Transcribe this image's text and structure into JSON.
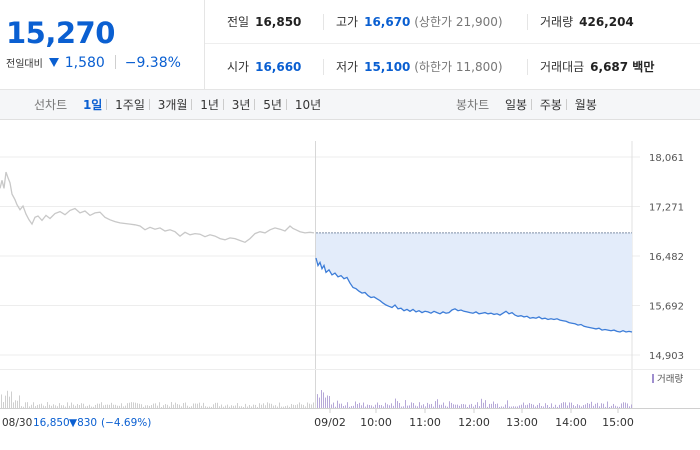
{
  "price": {
    "current": "15,270",
    "change_label": "전일대비",
    "change_abs": "1,580",
    "change_pct": "−9.38%",
    "color_down": "#0a5fd1"
  },
  "info": {
    "prev_close": {
      "label": "전일",
      "value": "16,850"
    },
    "open": {
      "label": "시가",
      "value": "16,660"
    },
    "high": {
      "label": "고가",
      "value": "16,670",
      "limit_label": "상한가",
      "limit_value": "21,900"
    },
    "low": {
      "label": "저가",
      "value": "15,100",
      "limit_label": "하한가",
      "limit_value": "11,800"
    },
    "volume": {
      "label": "거래량",
      "value": "426,204"
    },
    "amount": {
      "label": "거래대금",
      "value": "6,687 백만"
    }
  },
  "tabs": {
    "line_label": "선차트",
    "line_items": [
      "1일",
      "1주일",
      "3개월",
      "1년",
      "3년",
      "5년",
      "10년"
    ],
    "line_active": "1일",
    "candle_label": "봉차트",
    "candle_items": [
      "일봉",
      "주봉",
      "월봉"
    ]
  },
  "chart_data": {
    "type": "line",
    "y_ticks": [
      "18,061",
      "17,271",
      "16,482",
      "15,692",
      "14,903"
    ],
    "ylim": [
      14903,
      18061
    ],
    "x_ticks": [
      "09/02",
      "10:00",
      "11:00",
      "12:00",
      "13:00",
      "14:00",
      "15:00"
    ],
    "prev_day": {
      "date": "08/30",
      "close": "16,850",
      "change": "▼830",
      "change_pct": "(−4.69%)",
      "color": "#c8c8c8",
      "points": [
        [
          0,
          17560
        ],
        [
          2,
          17690
        ],
        [
          4,
          17560
        ],
        [
          6,
          17820
        ],
        [
          8,
          17730
        ],
        [
          10,
          17650
        ],
        [
          12,
          17470
        ],
        [
          15,
          17380
        ],
        [
          17,
          17300
        ],
        [
          20,
          17220
        ],
        [
          23,
          17280
        ],
        [
          26,
          17150
        ],
        [
          29,
          17060
        ],
        [
          32,
          16990
        ],
        [
          35,
          17100
        ],
        [
          38,
          17120
        ],
        [
          42,
          17050
        ],
        [
          46,
          17130
        ],
        [
          50,
          17080
        ],
        [
          55,
          17160
        ],
        [
          60,
          17190
        ],
        [
          65,
          17140
        ],
        [
          70,
          17210
        ],
        [
          75,
          17240
        ],
        [
          80,
          17170
        ],
        [
          85,
          17200
        ],
        [
          90,
          17130
        ],
        [
          95,
          17170
        ],
        [
          100,
          17180
        ],
        [
          105,
          17100
        ],
        [
          110,
          17060
        ],
        [
          115,
          17030
        ],
        [
          120,
          17010
        ],
        [
          125,
          17000
        ],
        [
          130,
          16990
        ],
        [
          135,
          16980
        ],
        [
          140,
          16960
        ],
        [
          145,
          16900
        ],
        [
          150,
          16940
        ],
        [
          155,
          16910
        ],
        [
          160,
          16930
        ],
        [
          165,
          16880
        ],
        [
          170,
          16900
        ],
        [
          175,
          16870
        ],
        [
          180,
          16800
        ],
        [
          185,
          16860
        ],
        [
          190,
          16820
        ],
        [
          195,
          16840
        ],
        [
          200,
          16830
        ],
        [
          205,
          16790
        ],
        [
          210,
          16820
        ],
        [
          215,
          16800
        ],
        [
          220,
          16760
        ],
        [
          225,
          16740
        ],
        [
          230,
          16770
        ],
        [
          235,
          16760
        ],
        [
          240,
          16730
        ],
        [
          245,
          16700
        ],
        [
          250,
          16760
        ],
        [
          255,
          16840
        ],
        [
          260,
          16870
        ],
        [
          265,
          16850
        ],
        [
          270,
          16900
        ],
        [
          275,
          16930
        ],
        [
          280,
          16910
        ],
        [
          285,
          16880
        ],
        [
          290,
          16960
        ],
        [
          293,
          16920
        ],
        [
          296,
          16900
        ],
        [
          300,
          16870
        ],
        [
          305,
          16850
        ],
        [
          310,
          16860
        ],
        [
          314,
          16850
        ]
      ]
    },
    "today": {
      "date": "09/02",
      "color": "#3d7dd8",
      "fill": "#e3ecfa",
      "points": [
        [
          0,
          16450
        ],
        [
          2,
          16330
        ],
        [
          4,
          16380
        ],
        [
          6,
          16280
        ],
        [
          8,
          16330
        ],
        [
          10,
          16220
        ],
        [
          13,
          16260
        ],
        [
          16,
          16180
        ],
        [
          19,
          16210
        ],
        [
          22,
          16150
        ],
        [
          25,
          16170
        ],
        [
          28,
          16120
        ],
        [
          31,
          16140
        ],
        [
          34,
          16050
        ],
        [
          37,
          15980
        ],
        [
          40,
          15960
        ],
        [
          43,
          15920
        ],
        [
          46,
          15890
        ],
        [
          49,
          15900
        ],
        [
          52,
          15850
        ],
        [
          55,
          15820
        ],
        [
          58,
          15830
        ],
        [
          61,
          15800
        ],
        [
          64,
          15770
        ],
        [
          67,
          15730
        ],
        [
          70,
          15700
        ],
        [
          73,
          15680
        ],
        [
          76,
          15660
        ],
        [
          79,
          15700
        ],
        [
          82,
          15640
        ],
        [
          85,
          15650
        ],
        [
          88,
          15610
        ],
        [
          91,
          15630
        ],
        [
          94,
          15600
        ],
        [
          97,
          15630
        ],
        [
          100,
          15590
        ],
        [
          103,
          15610
        ],
        [
          106,
          15580
        ],
        [
          109,
          15600
        ],
        [
          112,
          15590
        ],
        [
          115,
          15570
        ],
        [
          118,
          15600
        ],
        [
          121,
          15580
        ],
        [
          124,
          15560
        ],
        [
          127,
          15590
        ],
        [
          130,
          15570
        ],
        [
          133,
          15580
        ],
        [
          136,
          15620
        ],
        [
          139,
          15640
        ],
        [
          142,
          15610
        ],
        [
          145,
          15620
        ],
        [
          148,
          15600
        ],
        [
          151,
          15590
        ],
        [
          154,
          15580
        ],
        [
          157,
          15570
        ],
        [
          160,
          15590
        ],
        [
          163,
          15560
        ],
        [
          166,
          15570
        ],
        [
          169,
          15580
        ],
        [
          172,
          15560
        ],
        [
          175,
          15570
        ],
        [
          178,
          15550
        ],
        [
          181,
          15560
        ],
        [
          184,
          15540
        ],
        [
          187,
          15570
        ],
        [
          190,
          15600
        ],
        [
          193,
          15560
        ],
        [
          196,
          15580
        ],
        [
          199,
          15540
        ],
        [
          202,
          15520
        ],
        [
          205,
          15530
        ],
        [
          208,
          15510
        ],
        [
          211,
          15520
        ],
        [
          214,
          15490
        ],
        [
          217,
          15500
        ],
        [
          220,
          15490
        ],
        [
          223,
          15510
        ],
        [
          226,
          15480
        ],
        [
          229,
          15490
        ],
        [
          232,
          15470
        ],
        [
          235,
          15480
        ],
        [
          238,
          15470
        ],
        [
          241,
          15480
        ],
        [
          244,
          15460
        ],
        [
          247,
          15450
        ],
        [
          250,
          15440
        ],
        [
          253,
          15420
        ],
        [
          256,
          15410
        ],
        [
          259,
          15400
        ],
        [
          262,
          15380
        ],
        [
          265,
          15390
        ],
        [
          268,
          15360
        ],
        [
          271,
          15350
        ],
        [
          274,
          15340
        ],
        [
          277,
          15330
        ],
        [
          280,
          15320
        ],
        [
          283,
          15330
        ],
        [
          286,
          15300
        ],
        [
          289,
          15310
        ],
        [
          292,
          15300
        ],
        [
          295,
          15290
        ],
        [
          298,
          15300
        ],
        [
          301,
          15280
        ],
        [
          304,
          15270
        ],
        [
          307,
          15290
        ],
        [
          310,
          15270
        ],
        [
          313,
          15280
        ],
        [
          316,
          15270
        ]
      ]
    },
    "volume_label": "거래량"
  }
}
